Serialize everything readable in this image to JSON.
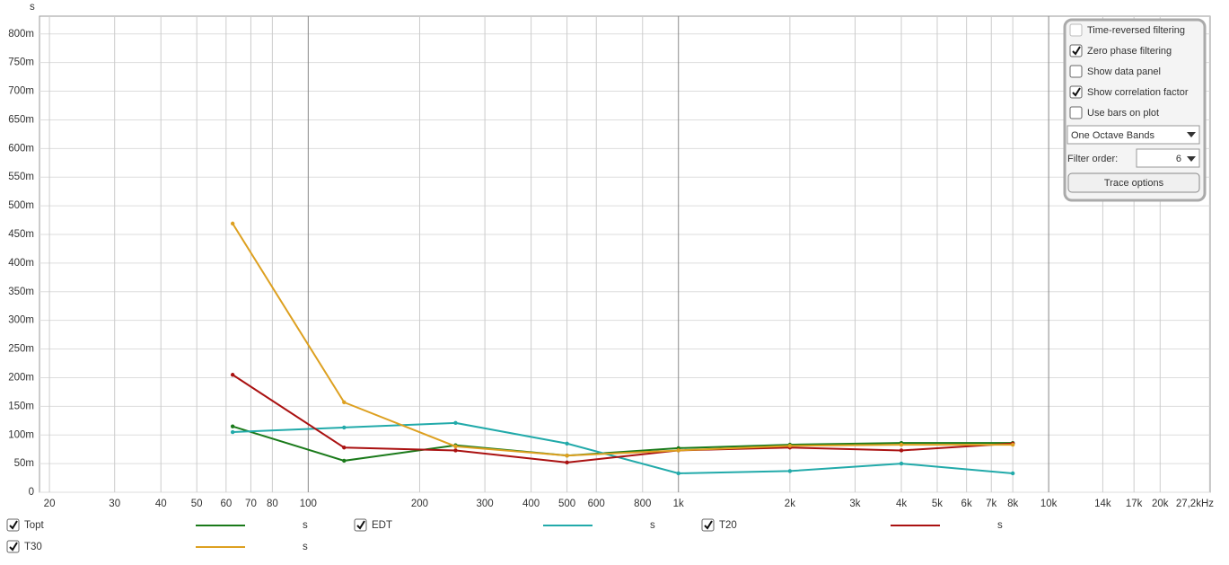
{
  "chart_data": {
    "type": "line",
    "x_scale": "log",
    "ylabel": "s",
    "x": [
      62.5,
      125,
      250,
      500,
      1000,
      2000,
      4000,
      8000
    ],
    "xlim": [
      18.8,
      27300
    ],
    "ylim": [
      0,
      0.831
    ],
    "xticks": [
      20,
      30,
      40,
      50,
      60,
      70,
      80,
      100,
      200,
      300,
      400,
      500,
      600,
      800,
      {
        "value": 1000,
        "label": "1k"
      },
      {
        "value": 2000,
        "label": "2k"
      },
      {
        "value": 3000,
        "label": "3k"
      },
      {
        "value": 4000,
        "label": "4k"
      },
      {
        "value": 5000,
        "label": "5k"
      },
      {
        "value": 6000,
        "label": "6k"
      },
      {
        "value": 7000,
        "label": "7k"
      },
      {
        "value": 8000,
        "label": "8k"
      },
      {
        "value": 10000,
        "label": "10k"
      },
      {
        "value": 14000,
        "label": "14k"
      },
      {
        "value": 17000,
        "label": "17k"
      },
      {
        "value": 20000,
        "label": "20k"
      },
      {
        "value": 27200,
        "label": "27,2kHz"
      }
    ],
    "yticks": [
      0,
      {
        "value": 0.05,
        "label": "50m"
      },
      {
        "value": 0.1,
        "label": "100m"
      },
      {
        "value": 0.15,
        "label": "150m"
      },
      {
        "value": 0.2,
        "label": "200m"
      },
      {
        "value": 0.25,
        "label": "250m"
      },
      {
        "value": 0.3,
        "label": "300m"
      },
      {
        "value": 0.35,
        "label": "350m"
      },
      {
        "value": 0.4,
        "label": "400m"
      },
      {
        "value": 0.45,
        "label": "450m"
      },
      {
        "value": 0.5,
        "label": "500m"
      },
      {
        "value": 0.55,
        "label": "550m"
      },
      {
        "value": 0.6,
        "label": "600m"
      },
      {
        "value": 0.65,
        "label": "650m"
      },
      {
        "value": 0.7,
        "label": "700m"
      },
      {
        "value": 0.75,
        "label": "750m"
      },
      {
        "value": 0.8,
        "label": "800m"
      }
    ],
    "grid": true,
    "series": [
      {
        "name": "Topt",
        "unit": "s",
        "color": "#1a7a1a",
        "values": [
          0.115,
          0.055,
          0.082,
          0.064,
          0.077,
          0.083,
          0.086,
          0.086
        ]
      },
      {
        "name": "EDT",
        "unit": "s",
        "color": "#22aaaa",
        "values": [
          0.105,
          0.113,
          0.121,
          0.085,
          0.033,
          0.037,
          0.05,
          0.033
        ]
      },
      {
        "name": "T20",
        "unit": "s",
        "color": "#aa1111",
        "values": [
          0.205,
          0.078,
          0.073,
          0.052,
          0.073,
          0.078,
          0.073,
          0.085
        ]
      },
      {
        "name": "T30",
        "unit": "s",
        "color": "#dda020",
        "values": [
          0.469,
          0.157,
          0.08,
          0.064,
          0.073,
          0.081,
          0.083,
          0.083
        ]
      }
    ]
  },
  "panel": {
    "options": [
      {
        "label": "Time-reversed filtering",
        "checked": false,
        "disabled": true
      },
      {
        "label": "Zero phase filtering",
        "checked": true,
        "disabled": false
      },
      {
        "label": "Show data panel",
        "checked": false,
        "disabled": false
      },
      {
        "label": "Show correlation factor",
        "checked": true,
        "disabled": false
      },
      {
        "label": "Use bars on plot",
        "checked": false,
        "disabled": false
      }
    ],
    "band_select": "One Octave Bands",
    "filter_order_label": "Filter order:",
    "filter_order": 6,
    "button": "Trace options"
  }
}
